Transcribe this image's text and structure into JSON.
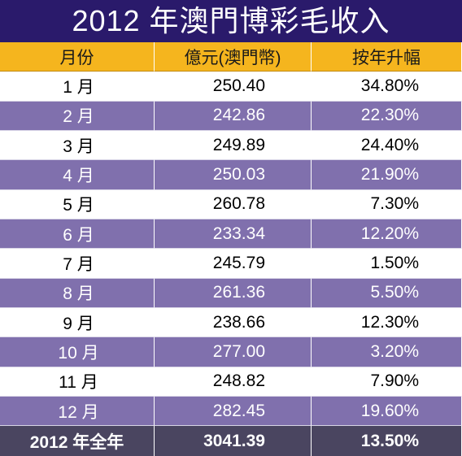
{
  "chart_data": {
    "type": "table",
    "title": "2012 年澳門博彩毛收入",
    "columns": [
      "月份",
      "億元(澳門幣)",
      "按年升幅"
    ],
    "rows": [
      {
        "month": "1 月",
        "revenue": "250.40",
        "growth": "34.80%"
      },
      {
        "month": "2 月",
        "revenue": "242.86",
        "growth": "22.30%"
      },
      {
        "month": "3 月",
        "revenue": "249.89",
        "growth": "24.40%"
      },
      {
        "month": "4 月",
        "revenue": "250.03",
        "growth": "21.90%"
      },
      {
        "month": "5 月",
        "revenue": "260.78",
        "growth": "7.30%"
      },
      {
        "month": "6 月",
        "revenue": "233.34",
        "growth": "12.20%"
      },
      {
        "month": "7 月",
        "revenue": "245.79",
        "growth": "1.50%"
      },
      {
        "month": "8 月",
        "revenue": "261.36",
        "growth": "5.50%"
      },
      {
        "month": "9 月",
        "revenue": "238.66",
        "growth": "12.30%"
      },
      {
        "month": "10 月",
        "revenue": "277.00",
        "growth": "3.20%"
      },
      {
        "month": "11 月",
        "revenue": "248.82",
        "growth": "7.90%"
      },
      {
        "month": "12 月",
        "revenue": "282.45",
        "growth": "19.60%"
      }
    ],
    "total": {
      "month": "2012 年全年",
      "revenue": "3041.39",
      "growth": "13.50%"
    },
    "colors": {
      "title_bg": "#2a1a6b",
      "header_bg": "#f5b51e",
      "row_alt_bg": "#8070ad",
      "total_bg": "#4a4560"
    }
  }
}
